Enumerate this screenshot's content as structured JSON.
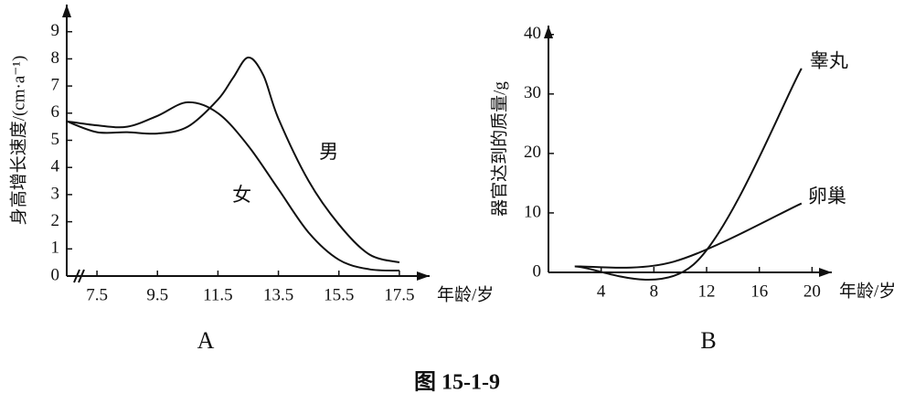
{
  "caption": "图 15-1-9",
  "chart_data": [
    {
      "type": "line",
      "label": "A",
      "xlabel": "年龄/岁",
      "ylabel": "身高增长速度/(cm·a⁻¹)",
      "xlim": [
        6.5,
        18.5
      ],
      "ylim": [
        0,
        10
      ],
      "axis_break": true,
      "xticks": [
        7.5,
        9.5,
        11.5,
        13.5,
        15.5,
        17.5
      ],
      "yticks": [
        0,
        1,
        2,
        3,
        4,
        5,
        6,
        7,
        8,
        9
      ],
      "series": [
        {
          "name": "男",
          "color": "#111111",
          "x": [
            6.5,
            7.5,
            8.5,
            9.5,
            10.5,
            11.5,
            12,
            12.5,
            13,
            13.5,
            14.5,
            15.5,
            16.5,
            17.5
          ],
          "values": [
            5.7,
            5.3,
            5.3,
            5.25,
            5.5,
            6.5,
            7.3,
            8.05,
            7.4,
            5.8,
            3.5,
            1.9,
            0.8,
            0.5
          ]
        },
        {
          "name": "女",
          "color": "#111111",
          "x": [
            6.5,
            7.5,
            8.5,
            9.5,
            10.5,
            11.5,
            12.5,
            13.5,
            14.5,
            15.5,
            16.5,
            17.5
          ],
          "values": [
            5.7,
            5.55,
            5.5,
            5.9,
            6.4,
            6.0,
            4.8,
            3.2,
            1.6,
            0.6,
            0.25,
            0.2
          ]
        }
      ]
    },
    {
      "type": "line",
      "label": "B",
      "xlabel": "年龄/岁",
      "ylabel": "器官达到的质量/g",
      "xlim": [
        0,
        21.5
      ],
      "ylim": [
        0,
        41.5
      ],
      "xticks": [
        4,
        8,
        12,
        16,
        20
      ],
      "yticks": [
        0,
        10,
        20,
        30,
        40
      ],
      "series": [
        {
          "name": "睾丸",
          "color": "#111111",
          "x": [
            2,
            11,
            19.2
          ],
          "values": [
            1,
            1.3,
            34.3
          ]
        },
        {
          "name": "卵巢",
          "color": "#111111",
          "x": [
            2,
            9.5,
            19.2
          ],
          "values": [
            1,
            1.8,
            11.6
          ]
        }
      ]
    }
  ]
}
